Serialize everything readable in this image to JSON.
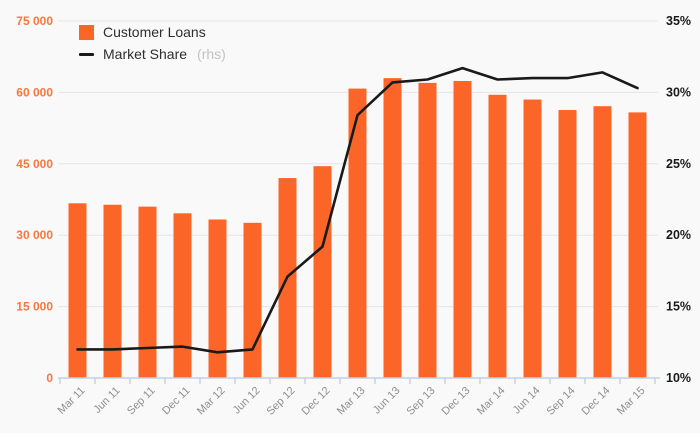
{
  "colors": {
    "background": "#f9f9f9",
    "bar": "#fb6628",
    "left_axis_labels": "#f8773e",
    "line": "#1a1a1a",
    "right_axis_labels": "#1a1a1a",
    "gridline": "#e6e6e6",
    "axis_line": "#c3cfe2",
    "x_labels": "#8f8f8f"
  },
  "legend": {
    "items": [
      {
        "label": "Customer Loans",
        "suffix": "",
        "marker": "bar-swatch"
      },
      {
        "label": "Market Share",
        "suffix": "(rhs)",
        "marker": "line-swatch"
      }
    ]
  },
  "chart_data": {
    "type": "bar",
    "subtype": "combo-bar-line-dual-axis",
    "title": "",
    "categories": [
      "Mar 11",
      "Jun 11",
      "Sep 11",
      "Dec 11",
      "Mar 12",
      "Jun 12",
      "Sep 12",
      "Dec 12",
      "Mar 13",
      "Jun 13",
      "Sep 13",
      "Dec 13",
      "Mar 14",
      "Jun 14",
      "Sep 14",
      "Dec 14",
      "Mar 15"
    ],
    "series": [
      {
        "name": "Customer Loans",
        "type": "bar",
        "axis": "left",
        "values": [
          36700,
          36400,
          36000,
          34600,
          33300,
          32600,
          42000,
          44500,
          60800,
          63000,
          62000,
          62400,
          59500,
          58500,
          56300,
          57100,
          55800
        ]
      },
      {
        "name": "Market Share (rhs)",
        "type": "line",
        "axis": "right",
        "values": [
          12.0,
          12.0,
          12.1,
          12.2,
          11.8,
          12.0,
          17.1,
          19.2,
          28.4,
          30.7,
          30.9,
          31.7,
          30.9,
          31.0,
          31.0,
          31.4,
          30.3
        ]
      }
    ],
    "left_axis": {
      "min": 0,
      "max": 75000,
      "step": 15000,
      "tick_labels": [
        "0",
        "15 000",
        "30 000",
        "45 000",
        "60 000",
        "75 000"
      ]
    },
    "right_axis": {
      "min": 10,
      "max": 35,
      "step": 5,
      "tick_labels": [
        "10%",
        "15%",
        "20%",
        "25%",
        "30%",
        "35%"
      ]
    },
    "grid": true,
    "legend_position": "top-left"
  }
}
